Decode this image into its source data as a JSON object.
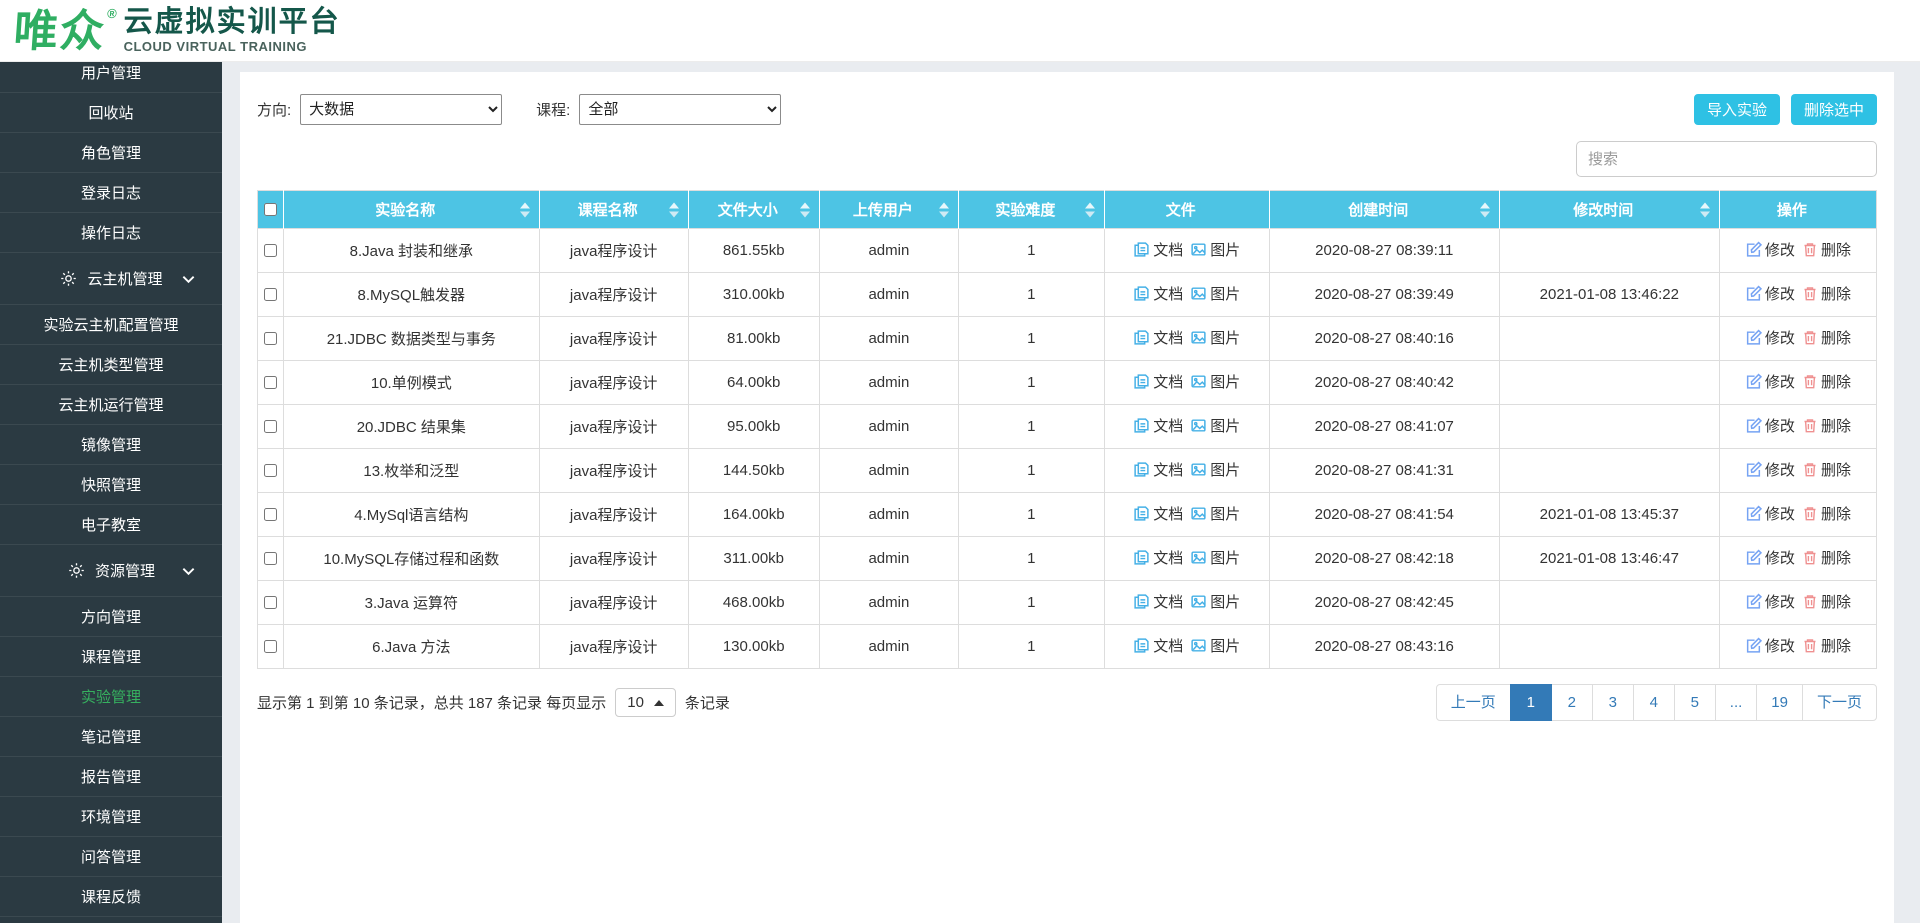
{
  "brand": {
    "name": "唯众",
    "reg": "®",
    "title": "云虚拟实训平台",
    "subtitle": "CLOUD VIRTUAL TRAINING"
  },
  "sidebar": {
    "items": [
      {
        "label": "用户管理",
        "type": "item"
      },
      {
        "label": "回收站",
        "type": "item"
      },
      {
        "label": "角色管理",
        "type": "item"
      },
      {
        "label": "登录日志",
        "type": "item"
      },
      {
        "label": "操作日志",
        "type": "item"
      },
      {
        "label": "云主机管理",
        "type": "section"
      },
      {
        "label": "实验云主机配置管理",
        "type": "item"
      },
      {
        "label": "云主机类型管理",
        "type": "item"
      },
      {
        "label": "云主机运行管理",
        "type": "item"
      },
      {
        "label": "镜像管理",
        "type": "item"
      },
      {
        "label": "快照管理",
        "type": "item"
      },
      {
        "label": "电子教室",
        "type": "item"
      },
      {
        "label": "资源管理",
        "type": "section"
      },
      {
        "label": "方向管理",
        "type": "item"
      },
      {
        "label": "课程管理",
        "type": "item"
      },
      {
        "label": "实验管理",
        "type": "item",
        "active": true
      },
      {
        "label": "笔记管理",
        "type": "item"
      },
      {
        "label": "报告管理",
        "type": "item"
      },
      {
        "label": "环境管理",
        "type": "item"
      },
      {
        "label": "问答管理",
        "type": "item"
      },
      {
        "label": "课程反馈",
        "type": "item"
      }
    ]
  },
  "filters": {
    "direction_label": "方向:",
    "direction_value": "大数据",
    "course_label": "课程:",
    "course_value": "全部"
  },
  "toolbar": {
    "import_label": "导入实验",
    "delete_selected_label": "删除选中"
  },
  "search": {
    "placeholder": "搜索"
  },
  "table": {
    "columns": [
      {
        "label": "实验名称",
        "sortable": true
      },
      {
        "label": "课程名称",
        "sortable": true
      },
      {
        "label": "文件大小",
        "sortable": true
      },
      {
        "label": "上传用户",
        "sortable": true
      },
      {
        "label": "实验难度",
        "sortable": true
      },
      {
        "label": "文件",
        "sortable": false
      },
      {
        "label": "创建时间",
        "sortable": true
      },
      {
        "label": "修改时间",
        "sortable": true
      },
      {
        "label": "操作",
        "sortable": false
      }
    ],
    "file_links": {
      "doc": "文档",
      "image": "图片"
    },
    "actions": {
      "edit": "修改",
      "delete": "删除"
    },
    "rows": [
      {
        "name": "8.Java 封装和继承",
        "course": "java程序设计",
        "size": "861.55kb",
        "user": "admin",
        "difficulty": "1",
        "created": "2020-08-27 08:39:11",
        "modified": ""
      },
      {
        "name": "8.MySQL触发器",
        "course": "java程序设计",
        "size": "310.00kb",
        "user": "admin",
        "difficulty": "1",
        "created": "2020-08-27 08:39:49",
        "modified": "2021-01-08 13:46:22"
      },
      {
        "name": "21.JDBC 数据类型与事务",
        "course": "java程序设计",
        "size": "81.00kb",
        "user": "admin",
        "difficulty": "1",
        "created": "2020-08-27 08:40:16",
        "modified": ""
      },
      {
        "name": "10.单例模式",
        "course": "java程序设计",
        "size": "64.00kb",
        "user": "admin",
        "difficulty": "1",
        "created": "2020-08-27 08:40:42",
        "modified": ""
      },
      {
        "name": "20.JDBC 结果集",
        "course": "java程序设计",
        "size": "95.00kb",
        "user": "admin",
        "difficulty": "1",
        "created": "2020-08-27 08:41:07",
        "modified": ""
      },
      {
        "name": "13.枚举和泛型",
        "course": "java程序设计",
        "size": "144.50kb",
        "user": "admin",
        "difficulty": "1",
        "created": "2020-08-27 08:41:31",
        "modified": ""
      },
      {
        "name": "4.MySql语言结构",
        "course": "java程序设计",
        "size": "164.00kb",
        "user": "admin",
        "difficulty": "1",
        "created": "2020-08-27 08:41:54",
        "modified": "2021-01-08 13:45:37"
      },
      {
        "name": "10.MySQL存储过程和函数",
        "course": "java程序设计",
        "size": "311.00kb",
        "user": "admin",
        "difficulty": "1",
        "created": "2020-08-27 08:42:18",
        "modified": "2021-01-08 13:46:47"
      },
      {
        "name": "3.Java 运算符",
        "course": "java程序设计",
        "size": "468.00kb",
        "user": "admin",
        "difficulty": "1",
        "created": "2020-08-27 08:42:45",
        "modified": ""
      },
      {
        "name": "6.Java 方法",
        "course": "java程序设计",
        "size": "130.00kb",
        "user": "admin",
        "difficulty": "1",
        "created": "2020-08-27 08:43:16",
        "modified": ""
      }
    ]
  },
  "pagination": {
    "summary_prefix": "显示第 1 到第 10 条记录，总共 187 条记录 每页显示",
    "page_size": "10",
    "summary_suffix": "条记录",
    "prev_label": "上一页",
    "next_label": "下一页",
    "pages": [
      "1",
      "2",
      "3",
      "4",
      "5",
      "...",
      "19"
    ],
    "active_page": "1"
  },
  "colors": {
    "accent_cyan": "#2ec1e4",
    "table_header_cyan": "#4dc4e4",
    "sidebar_bg": "#2b3a42",
    "active_green": "#36b05f",
    "brand_green": "#2fae62",
    "pagination_blue": "#337ab7",
    "edit_icon_blue": "#76a3f3",
    "delete_icon_red": "#ef9090",
    "file_icon_blue": "#45b0e6"
  }
}
